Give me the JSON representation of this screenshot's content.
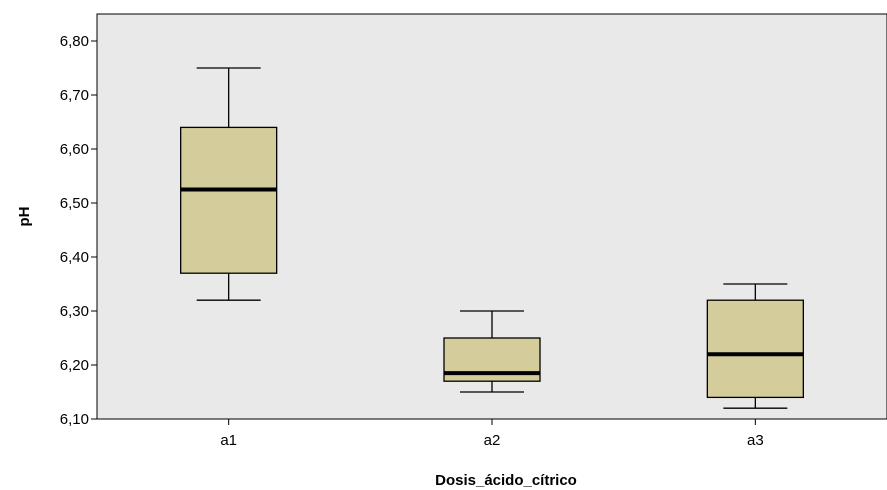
{
  "chart_data": {
    "type": "box",
    "title": "",
    "xlabel": "Dosis_ácido_cítrico",
    "ylabel": "pH",
    "categories": [
      "a1",
      "a2",
      "a3"
    ],
    "ylim": [
      6.1,
      6.85
    ],
    "yticks": [
      6.1,
      6.2,
      6.3,
      6.4,
      6.5,
      6.6,
      6.7,
      6.8
    ],
    "ytick_labels": [
      "6,10",
      "6,20",
      "6,30",
      "6,40",
      "6,50",
      "6,60",
      "6,70",
      "6,80"
    ],
    "grid": false,
    "boxes": [
      {
        "category": "a1",
        "min": 6.32,
        "q1": 6.37,
        "median": 6.525,
        "q3": 6.64,
        "max": 6.75
      },
      {
        "category": "a2",
        "min": 6.15,
        "q1": 6.17,
        "median": 6.185,
        "q3": 6.25,
        "max": 6.3
      },
      {
        "category": "a3",
        "min": 6.12,
        "q1": 6.14,
        "median": 6.22,
        "q3": 6.32,
        "max": 6.35
      }
    ],
    "colors": {
      "plot_background": "#e9e9e9",
      "box_fill": "#d4cc9a",
      "stroke": "#000000"
    }
  }
}
